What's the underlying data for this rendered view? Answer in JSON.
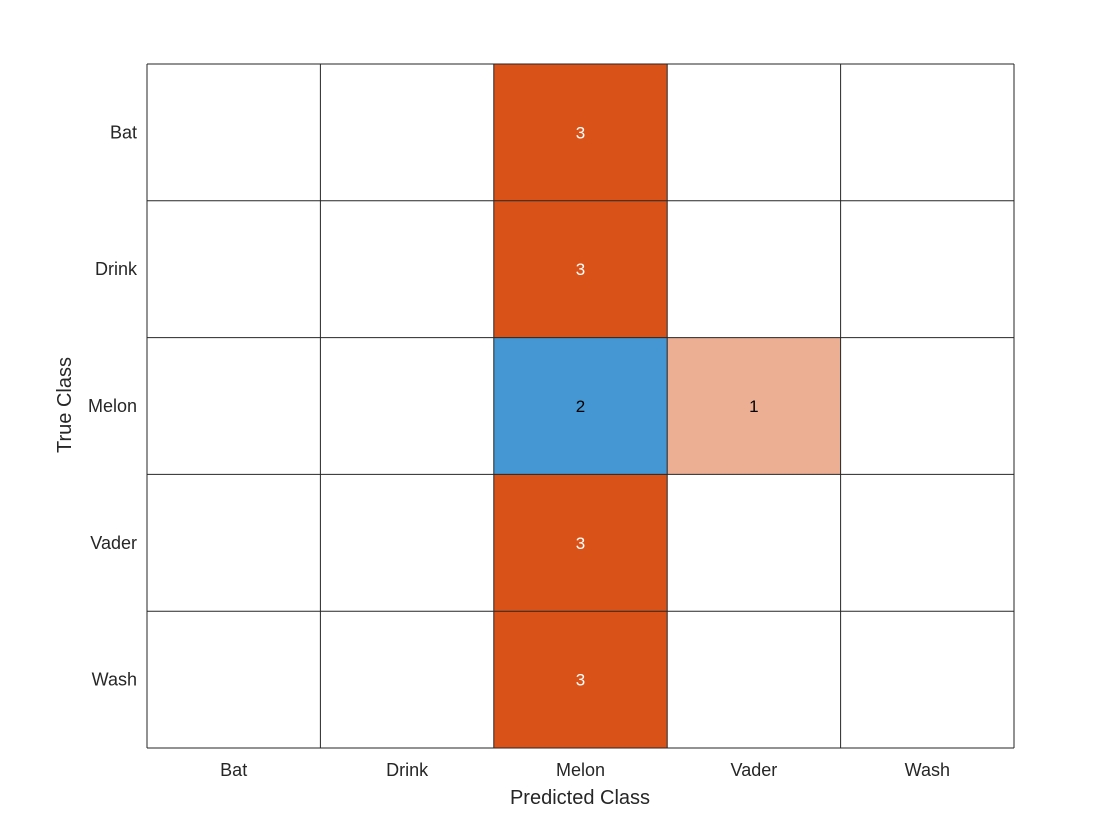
{
  "chart_data": {
    "type": "heatmap",
    "title": "",
    "xlabel": "Predicted Class",
    "ylabel": "True Class",
    "x_categories": [
      "Bat",
      "Drink",
      "Melon",
      "Vader",
      "Wash"
    ],
    "y_categories": [
      "Bat",
      "Drink",
      "Melon",
      "Vader",
      "Wash"
    ],
    "matrix": [
      [
        0,
        0,
        3,
        0,
        0
      ],
      [
        0,
        0,
        3,
        0,
        0
      ],
      [
        0,
        0,
        2,
        1,
        0
      ],
      [
        0,
        0,
        3,
        0,
        0
      ],
      [
        0,
        0,
        3,
        0,
        0
      ]
    ],
    "grid": true,
    "legend": "none"
  },
  "colors": {
    "diagonal_cell": "#4497d2",
    "off_diagonal_strong": "#d95319",
    "off_diagonal_weak": "#ecaf93",
    "grid_line": "#262626",
    "text_dark": "#000000",
    "text_light": "#ffffff",
    "axis_text": "#262626"
  }
}
